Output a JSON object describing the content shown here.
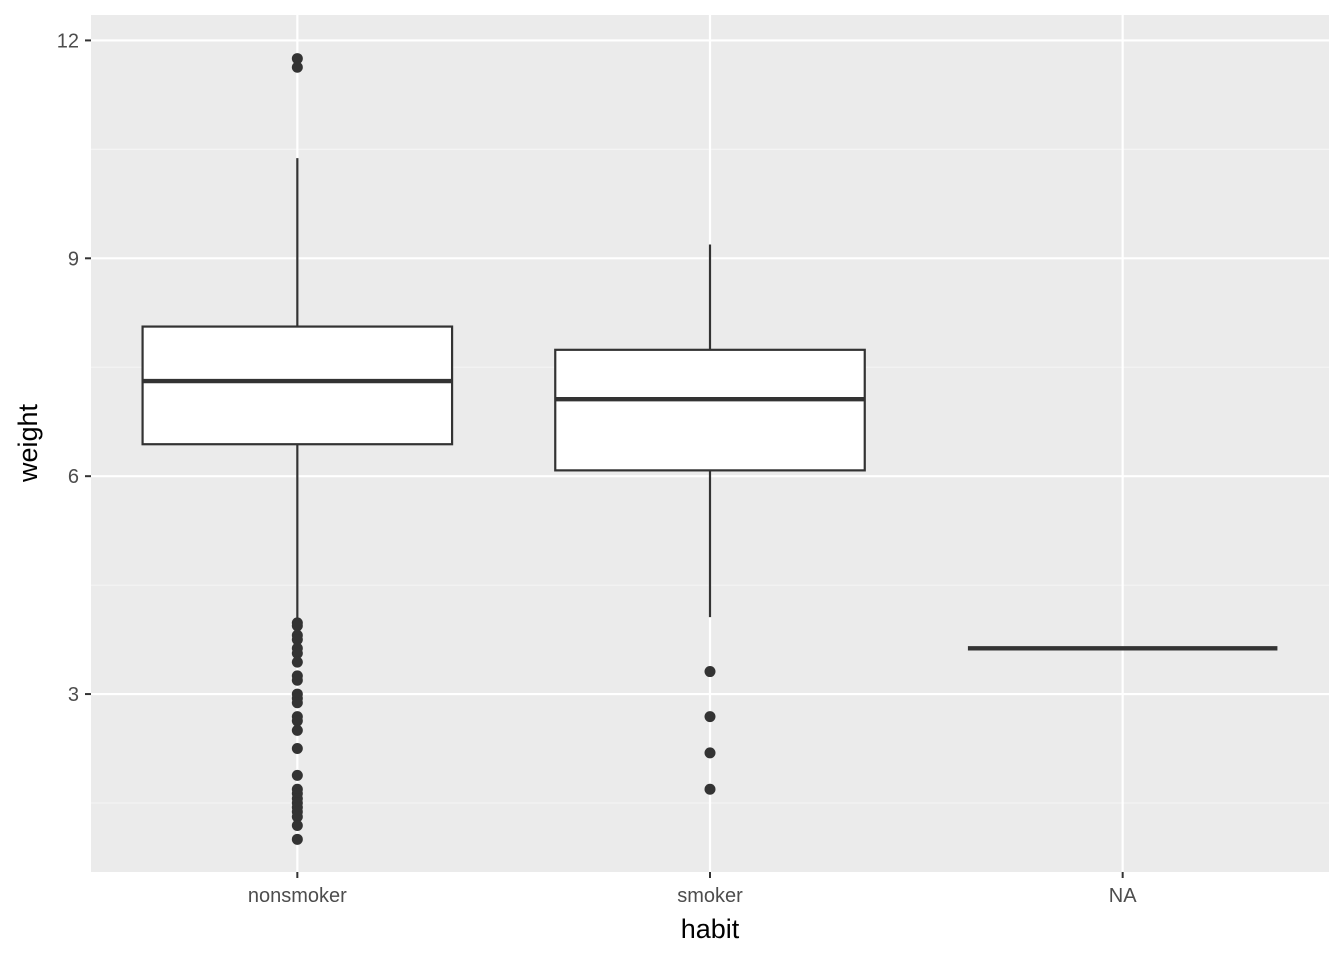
{
  "chart_data": {
    "type": "boxplot",
    "xlabel": "habit",
    "ylabel": "weight",
    "categories": [
      "nonsmoker",
      "smoker",
      "NA"
    ],
    "ylim": [
      0.55,
      12.35
    ],
    "y_ticks": [
      3,
      6,
      9,
      12
    ],
    "y_tick_labels": [
      "3",
      "6",
      "9",
      "12"
    ],
    "grid": true,
    "boxes": [
      {
        "category": "nonsmoker",
        "lower_whisker": 4.0,
        "q1": 6.44,
        "median": 7.31,
        "q3": 8.06,
        "upper_whisker": 10.38,
        "outliers": [
          11.75,
          11.63,
          3.98,
          3.94,
          3.81,
          3.75,
          3.63,
          3.56,
          3.44,
          3.25,
          3.19,
          3.0,
          2.94,
          2.88,
          2.69,
          2.63,
          2.5,
          2.25,
          1.88,
          1.69,
          1.63,
          1.56,
          1.5,
          1.44,
          1.38,
          1.31,
          1.19,
          1.0
        ]
      },
      {
        "category": "smoker",
        "lower_whisker": 4.06,
        "q1": 6.08,
        "median": 7.06,
        "q3": 7.74,
        "upper_whisker": 9.19,
        "outliers": [
          3.31,
          2.69,
          2.19,
          1.69
        ]
      },
      {
        "category": "NA",
        "lower_whisker": 3.63,
        "q1": 3.63,
        "median": 3.63,
        "q3": 3.63,
        "upper_whisker": 3.63,
        "outliers": []
      }
    ],
    "colors": {
      "panel_background": "#ebebeb",
      "grid_major": "#ffffff",
      "grid_minor": "#f5f5f5",
      "box_fill": "#ffffff",
      "box_line": "#333333",
      "outlier": "#333333",
      "tick_text": "#4d4d4d",
      "title_text": "#000000"
    }
  }
}
